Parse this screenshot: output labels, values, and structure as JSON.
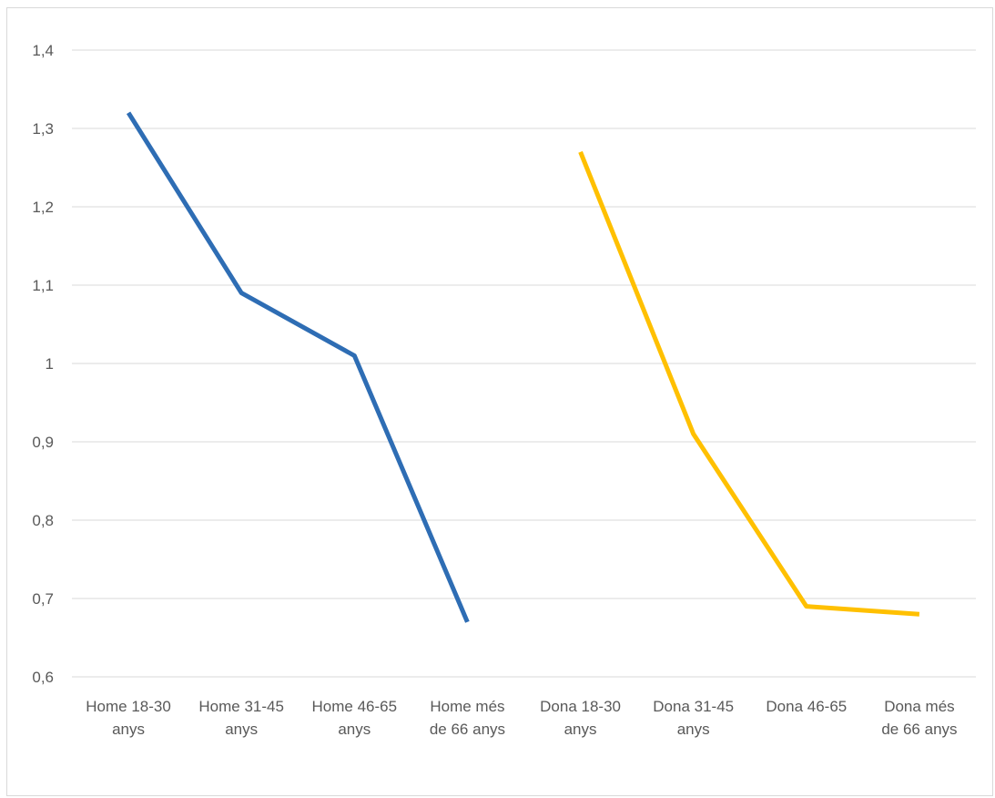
{
  "chart_data": {
    "type": "line",
    "categories": [
      [
        "Home 18-30",
        "anys"
      ],
      [
        "Home 31-45",
        "anys"
      ],
      [
        "Home 46-65",
        "anys"
      ],
      [
        "Home més",
        "de 66 anys"
      ],
      [
        "Dona 18-30",
        "anys"
      ],
      [
        "Dona 31-45",
        "anys"
      ],
      [
        "Dona 46-65"
      ],
      [
        "Dona més",
        "de 66 anys"
      ]
    ],
    "series": [
      {
        "color": "#2E6DB4",
        "values": [
          1.32,
          1.09,
          1.01,
          0.67,
          null,
          null,
          null,
          null
        ]
      },
      {
        "color": "#FFC000",
        "values": [
          null,
          null,
          null,
          null,
          1.27,
          0.91,
          0.69,
          0.68
        ]
      }
    ],
    "ylim": [
      0.6,
      1.4
    ],
    "yticks": [
      {
        "value": 1.4,
        "label": "1,4"
      },
      {
        "value": 1.3,
        "label": "1,3"
      },
      {
        "value": 1.2,
        "label": "1,2"
      },
      {
        "value": 1.1,
        "label": "1,1"
      },
      {
        "value": 1.0,
        "label": "1"
      },
      {
        "value": 0.9,
        "label": "0,9"
      },
      {
        "value": 0.8,
        "label": "0,8"
      },
      {
        "value": 0.7,
        "label": "0,7"
      },
      {
        "value": 0.6,
        "label": "0,6"
      }
    ],
    "grid": true,
    "legend": "none"
  }
}
